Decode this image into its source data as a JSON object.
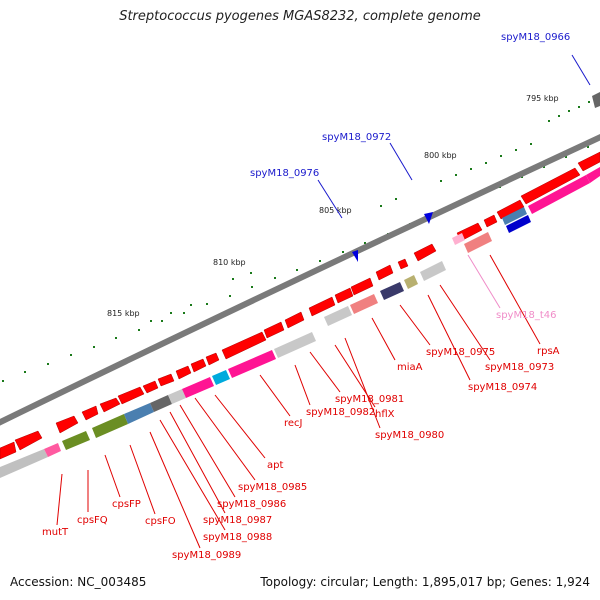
{
  "title": "Streptococcus pyogenes MGAS8232, complete genome",
  "footer": {
    "accession": "Accession: NC_003485",
    "summary": "Topology: circular; Length: 1,895,017 bp; Genes: 1,924"
  },
  "scale_ticks": [
    "795 kbp",
    "800 kbp",
    "805 kbp",
    "810 kbp",
    "815 kbp"
  ],
  "labels": {
    "red": {
      "color": "#e00000",
      "items": [
        "mutT",
        "cpsFQ",
        "cpsFP",
        "cpsFO",
        "spyM18_0989",
        "spyM18_0988",
        "spyM18_0987",
        "spyM18_0986",
        "spyM18_0985",
        "apt",
        "recJ",
        "spyM18_0982",
        "spyM18_0981",
        "hflX",
        "spyM18_0980",
        "miaA",
        "spyM18_0975",
        "spyM18_0974",
        "spyM18_0973",
        "rpsA"
      ]
    },
    "blue": {
      "color": "#1a1acc",
      "items": [
        "spyM18_0966",
        "spyM18_0972",
        "spyM18_0976"
      ]
    },
    "pink": {
      "color": "#f08cc8",
      "items": [
        "spyM18_t46"
      ]
    }
  }
}
